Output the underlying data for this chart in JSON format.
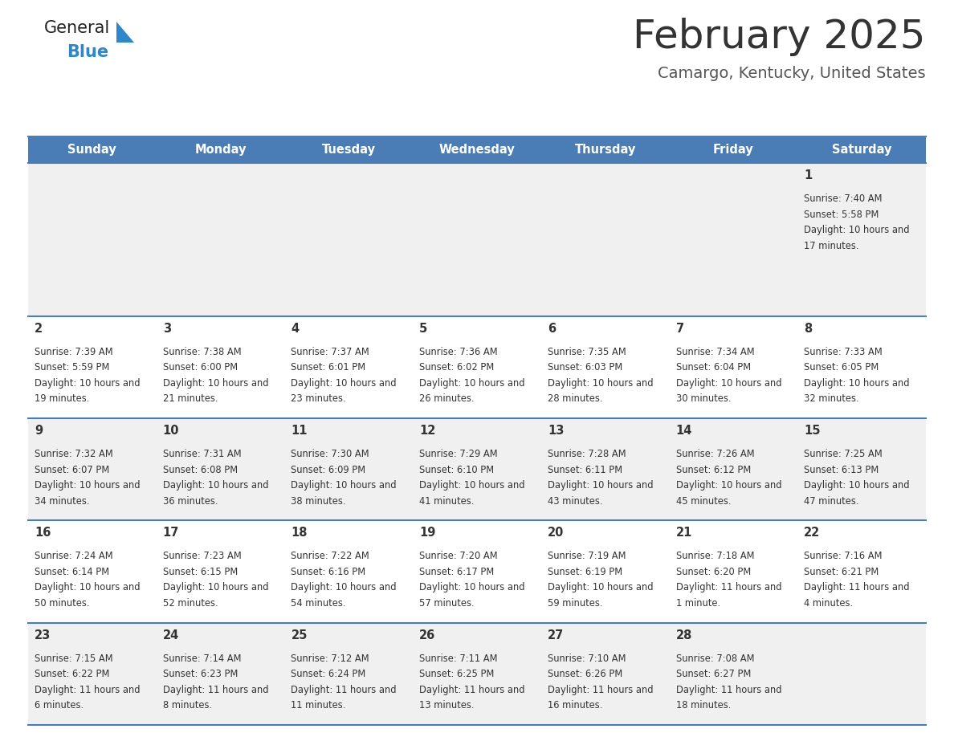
{
  "title": "February 2025",
  "subtitle": "Camargo, Kentucky, United States",
  "header_color": "#4a7db5",
  "header_text_color": "#ffffff",
  "days_of_week": [
    "Sunday",
    "Monday",
    "Tuesday",
    "Wednesday",
    "Thursday",
    "Friday",
    "Saturday"
  ],
  "cell_bg_row0": "#f0f0f0",
  "cell_bg_row1": "#ffffff",
  "cell_bg_row2": "#f0f0f0",
  "cell_bg_row3": "#ffffff",
  "cell_bg_row4": "#f0f0f0",
  "title_color": "#333333",
  "subtitle_color": "#555555",
  "day_number_color": "#333333",
  "info_color": "#333333",
  "border_color": "#4a7db5",
  "logo_general_color": "#222222",
  "logo_blue_color": "#2e87c8",
  "logo_triangle_color": "#2e87c8",
  "calendar": [
    [
      null,
      null,
      null,
      null,
      null,
      null,
      {
        "day": 1,
        "sunrise": "7:40 AM",
        "sunset": "5:58 PM",
        "daylight": "10 hours and 17 minutes."
      }
    ],
    [
      {
        "day": 2,
        "sunrise": "7:39 AM",
        "sunset": "5:59 PM",
        "daylight": "10 hours and 19 minutes."
      },
      {
        "day": 3,
        "sunrise": "7:38 AM",
        "sunset": "6:00 PM",
        "daylight": "10 hours and 21 minutes."
      },
      {
        "day": 4,
        "sunrise": "7:37 AM",
        "sunset": "6:01 PM",
        "daylight": "10 hours and 23 minutes."
      },
      {
        "day": 5,
        "sunrise": "7:36 AM",
        "sunset": "6:02 PM",
        "daylight": "10 hours and 26 minutes."
      },
      {
        "day": 6,
        "sunrise": "7:35 AM",
        "sunset": "6:03 PM",
        "daylight": "10 hours and 28 minutes."
      },
      {
        "day": 7,
        "sunrise": "7:34 AM",
        "sunset": "6:04 PM",
        "daylight": "10 hours and 30 minutes."
      },
      {
        "day": 8,
        "sunrise": "7:33 AM",
        "sunset": "6:05 PM",
        "daylight": "10 hours and 32 minutes."
      }
    ],
    [
      {
        "day": 9,
        "sunrise": "7:32 AM",
        "sunset": "6:07 PM",
        "daylight": "10 hours and 34 minutes."
      },
      {
        "day": 10,
        "sunrise": "7:31 AM",
        "sunset": "6:08 PM",
        "daylight": "10 hours and 36 minutes."
      },
      {
        "day": 11,
        "sunrise": "7:30 AM",
        "sunset": "6:09 PM",
        "daylight": "10 hours and 38 minutes."
      },
      {
        "day": 12,
        "sunrise": "7:29 AM",
        "sunset": "6:10 PM",
        "daylight": "10 hours and 41 minutes."
      },
      {
        "day": 13,
        "sunrise": "7:28 AM",
        "sunset": "6:11 PM",
        "daylight": "10 hours and 43 minutes."
      },
      {
        "day": 14,
        "sunrise": "7:26 AM",
        "sunset": "6:12 PM",
        "daylight": "10 hours and 45 minutes."
      },
      {
        "day": 15,
        "sunrise": "7:25 AM",
        "sunset": "6:13 PM",
        "daylight": "10 hours and 47 minutes."
      }
    ],
    [
      {
        "day": 16,
        "sunrise": "7:24 AM",
        "sunset": "6:14 PM",
        "daylight": "10 hours and 50 minutes."
      },
      {
        "day": 17,
        "sunrise": "7:23 AM",
        "sunset": "6:15 PM",
        "daylight": "10 hours and 52 minutes."
      },
      {
        "day": 18,
        "sunrise": "7:22 AM",
        "sunset": "6:16 PM",
        "daylight": "10 hours and 54 minutes."
      },
      {
        "day": 19,
        "sunrise": "7:20 AM",
        "sunset": "6:17 PM",
        "daylight": "10 hours and 57 minutes."
      },
      {
        "day": 20,
        "sunrise": "7:19 AM",
        "sunset": "6:19 PM",
        "daylight": "10 hours and 59 minutes."
      },
      {
        "day": 21,
        "sunrise": "7:18 AM",
        "sunset": "6:20 PM",
        "daylight": "11 hours and 1 minute."
      },
      {
        "day": 22,
        "sunrise": "7:16 AM",
        "sunset": "6:21 PM",
        "daylight": "11 hours and 4 minutes."
      }
    ],
    [
      {
        "day": 23,
        "sunrise": "7:15 AM",
        "sunset": "6:22 PM",
        "daylight": "11 hours and 6 minutes."
      },
      {
        "day": 24,
        "sunrise": "7:14 AM",
        "sunset": "6:23 PM",
        "daylight": "11 hours and 8 minutes."
      },
      {
        "day": 25,
        "sunrise": "7:12 AM",
        "sunset": "6:24 PM",
        "daylight": "11 hours and 11 minutes."
      },
      {
        "day": 26,
        "sunrise": "7:11 AM",
        "sunset": "6:25 PM",
        "daylight": "11 hours and 13 minutes."
      },
      {
        "day": 27,
        "sunrise": "7:10 AM",
        "sunset": "6:26 PM",
        "daylight": "11 hours and 16 minutes."
      },
      {
        "day": 28,
        "sunrise": "7:08 AM",
        "sunset": "6:27 PM",
        "daylight": "11 hours and 18 minutes."
      },
      null
    ]
  ],
  "row_bg_colors": [
    "#f0f0f0",
    "#ffffff",
    "#f0f0f0",
    "#ffffff",
    "#f0f0f0"
  ]
}
